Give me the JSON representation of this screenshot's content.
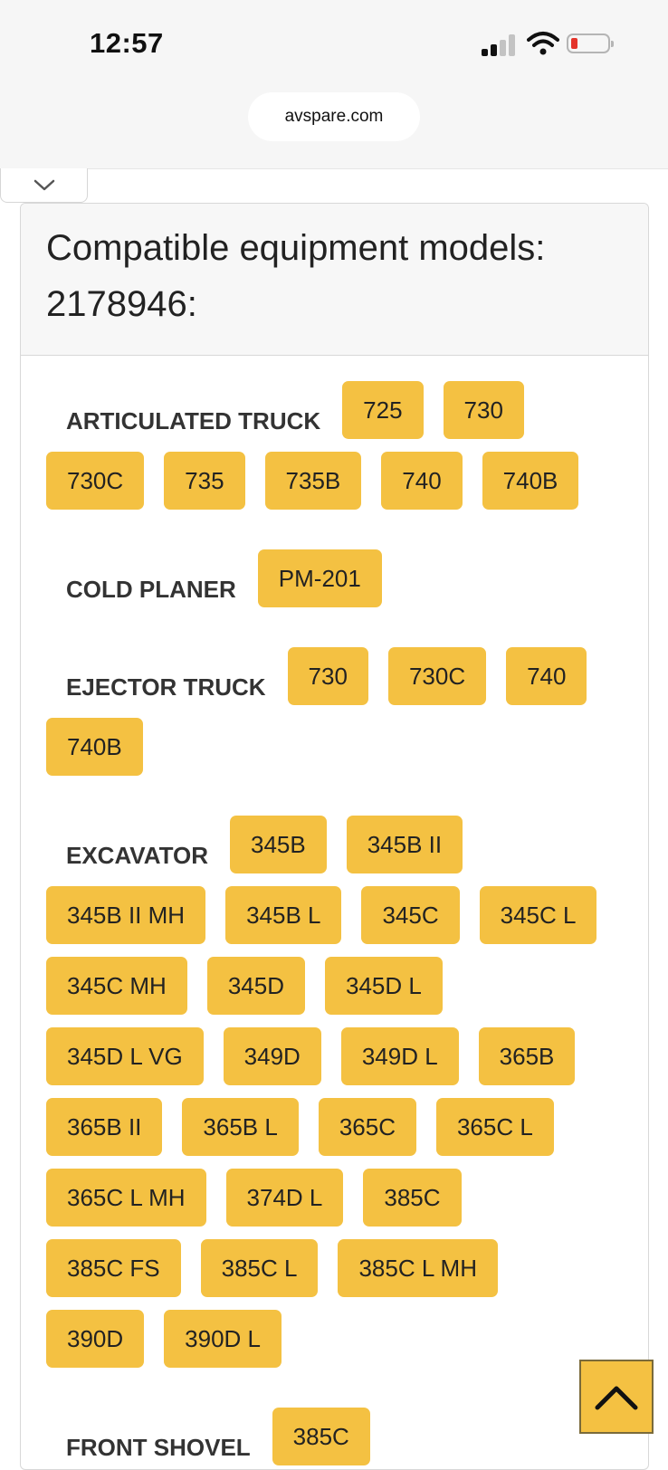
{
  "status_bar": {
    "time": "12:57"
  },
  "browser": {
    "url": "avspare.com"
  },
  "card": {
    "title_line1": "Compatible equipment models:",
    "title_line2": "2178946:"
  },
  "categories": [
    {
      "label": "ARTICULATED TRUCK",
      "models": [
        "725",
        "730",
        "730C",
        "735",
        "735B",
        "740",
        "740B"
      ]
    },
    {
      "label": "COLD PLANER",
      "models": [
        "PM-201"
      ]
    },
    {
      "label": "EJECTOR TRUCK",
      "models": [
        "730",
        "730C",
        "740",
        "740B"
      ]
    },
    {
      "label": "EXCAVATOR",
      "models": [
        "345B",
        "345B II",
        "345B II MH",
        "345B L",
        "345C",
        "345C L",
        "345C MH",
        "345D",
        "345D L",
        "345D L VG",
        "349D",
        "349D L",
        "365B",
        "365B II",
        "365B L",
        "365C",
        "365C L",
        "365C L MH",
        "374D L",
        "385C",
        "385C FS",
        "385C L",
        "385C L MH",
        "390D",
        "390D L"
      ]
    },
    {
      "label": "FRONT SHOVEL",
      "models": [
        "385C"
      ]
    }
  ],
  "colors": {
    "tag": "#f4c142",
    "battery_low": "#e4342b"
  },
  "icons": {
    "collapse": "chevron-down-icon",
    "scroll_top": "chevron-up-icon"
  }
}
